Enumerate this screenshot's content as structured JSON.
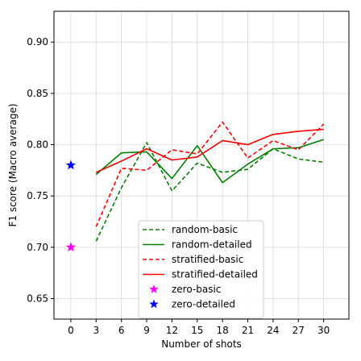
{
  "chart_data": {
    "type": "line",
    "xlabel": "Number of shots",
    "ylabel": "F1 score (Macro average)",
    "xlim": [
      -2,
      33
    ],
    "ylim": [
      0.63,
      0.93
    ],
    "xticks": [
      0,
      3,
      6,
      9,
      12,
      15,
      18,
      21,
      24,
      27,
      30
    ],
    "yticks": [
      0.65,
      0.7,
      0.75,
      0.8,
      0.85,
      0.9
    ],
    "ytick_labels": [
      "0.65",
      "0.70",
      "0.75",
      "0.80",
      "0.85",
      "0.90"
    ],
    "grid": true,
    "legend_position": "lower-center",
    "series": [
      {
        "name": "random-basic",
        "style": "dashed",
        "color": "#008000",
        "x": [
          3,
          6,
          9,
          12,
          15,
          18,
          21,
          24,
          27,
          30
        ],
        "y": [
          0.706,
          0.758,
          0.802,
          0.755,
          0.782,
          0.773,
          0.776,
          0.796,
          0.786,
          0.783
        ]
      },
      {
        "name": "random-detailed",
        "style": "solid",
        "color": "#008000",
        "x": [
          3,
          6,
          9,
          12,
          15,
          18,
          21,
          24,
          27,
          30
        ],
        "y": [
          0.771,
          0.792,
          0.793,
          0.767,
          0.799,
          0.763,
          0.781,
          0.796,
          0.797,
          0.805
        ]
      },
      {
        "name": "stratified-basic",
        "style": "dashed",
        "color": "#ff0000",
        "x": [
          3,
          6,
          9,
          12,
          15,
          18,
          21,
          24,
          27,
          30
        ],
        "y": [
          0.72,
          0.777,
          0.775,
          0.795,
          0.791,
          0.822,
          0.787,
          0.804,
          0.795,
          0.82
        ]
      },
      {
        "name": "stratified-detailed",
        "style": "solid",
        "color": "#ff0000",
        "x": [
          3,
          6,
          9,
          12,
          15,
          18,
          21,
          24,
          27,
          30
        ],
        "y": [
          0.773,
          0.784,
          0.796,
          0.785,
          0.788,
          0.804,
          0.8,
          0.81,
          0.813,
          0.815
        ]
      },
      {
        "name": "zero-basic",
        "style": "marker",
        "marker": "star",
        "color": "#ff00ff",
        "x": [
          0
        ],
        "y": [
          0.7
        ]
      },
      {
        "name": "zero-detailed",
        "style": "marker",
        "marker": "star",
        "color": "#0000ff",
        "x": [
          0
        ],
        "y": [
          0.78
        ]
      }
    ]
  }
}
